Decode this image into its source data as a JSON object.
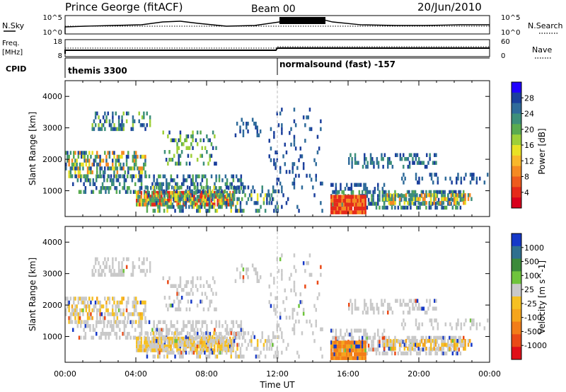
{
  "header": {
    "station": "Prince George (fitACF)",
    "beam": "Beam 00",
    "date": "20/Jun/2010"
  },
  "nsky_panel": {
    "left_label": "N.Sky",
    "left_ticks": [
      "10^5",
      "10^0"
    ],
    "right_ticks": [
      "10^5",
      "10^0"
    ],
    "right_label": "N.Search"
  },
  "freq_panel": {
    "left_label_line1": "Freq.",
    "left_label_line2": "[MHz]",
    "left_ticks": [
      "18",
      "8"
    ],
    "right_ticks": [
      "60",
      "0"
    ],
    "right_label": "Nave"
  },
  "cpid_panel": {
    "label": "CPID",
    "segments": [
      {
        "name": "themis 3300",
        "start_hour": 0
      },
      {
        "name": "normalsound (fast) -157",
        "start_hour": 12
      }
    ]
  },
  "time_axis": {
    "title": "Time UT",
    "tick_labels": [
      "00:00",
      "04:00",
      "08:00",
      "12:00",
      "16:00",
      "20:00",
      "00:00"
    ],
    "range_hours": [
      0,
      24
    ]
  },
  "chart_data": [
    {
      "type": "heatmap",
      "name": "power",
      "xlabel": "Time UT",
      "ylabel": "Slant Range [km]",
      "xlim_hours": [
        0,
        24
      ],
      "ylim": [
        180,
        4500
      ],
      "yticks": [
        1000,
        2000,
        3000,
        4000
      ],
      "colorbar": {
        "title": "Power [dB]",
        "tick_labels": [
          "28",
          "24",
          "20",
          "16",
          "12",
          "8",
          "4"
        ],
        "range": [
          0,
          32
        ],
        "colors": [
          "#1f00ff",
          "#1b3f9c",
          "#2f6b9a",
          "#3d8f7a",
          "#5aab50",
          "#9ecf39",
          "#e9e124",
          "#f8b72a",
          "#f58a22",
          "#ee5b1d",
          "#e52a1a",
          "#d8001c"
        ]
      }
    },
    {
      "type": "heatmap",
      "name": "velocity",
      "xlabel": "Time UT",
      "ylabel": "Slant Range [km]",
      "xlim_hours": [
        0,
        24
      ],
      "ylim": [
        180,
        4500
      ],
      "yticks": [
        1000,
        2000,
        3000,
        4000
      ],
      "colorbar": {
        "title": "Velocity [m s^-1]",
        "tick_labels": [
          "1000",
          "500",
          "100",
          "25",
          "-25",
          "-100",
          "-500",
          "-1000"
        ],
        "colors": [
          "#1538c8",
          "#2f6f8f",
          "#3b8a3a",
          "#6fc43c",
          "#c9c9c9",
          "#f5c023",
          "#f5a51c",
          "#f27d19",
          "#ea4a17",
          "#e00f18"
        ]
      }
    }
  ]
}
